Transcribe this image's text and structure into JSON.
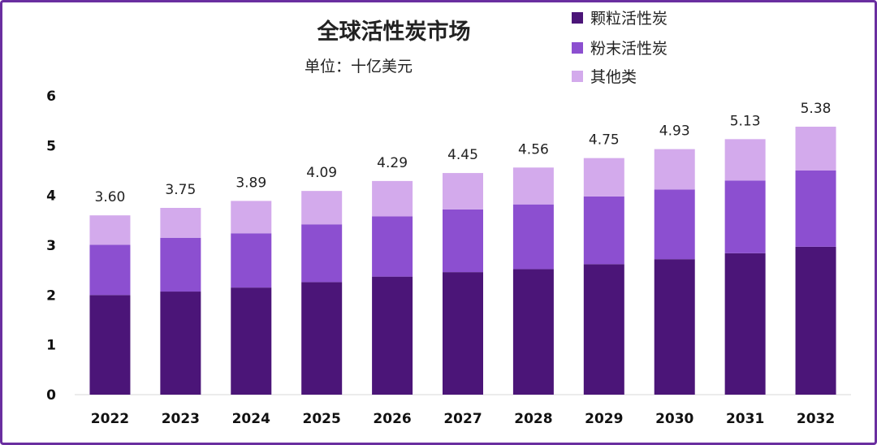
{
  "chart_data": {
    "type": "bar",
    "stacked": true,
    "title": "全球活性炭市场",
    "subtitle": "单位：十亿美元",
    "categories": [
      "2022",
      "2023",
      "2024",
      "2025",
      "2026",
      "2027",
      "2028",
      "2029",
      "2030",
      "2031",
      "2032"
    ],
    "series": [
      {
        "name": "颗粒活性炭",
        "color": "#4b1578",
        "values": [
          2.0,
          2.07,
          2.15,
          2.26,
          2.37,
          2.46,
          2.52,
          2.62,
          2.72,
          2.84,
          2.97
        ]
      },
      {
        "name": "粉末活性炭",
        "color": "#8c4fd0",
        "values": [
          1.01,
          1.08,
          1.09,
          1.16,
          1.21,
          1.26,
          1.3,
          1.36,
          1.4,
          1.46,
          1.53
        ]
      },
      {
        "name": "其他类",
        "color": "#d3aaec",
        "values": [
          0.59,
          0.6,
          0.65,
          0.67,
          0.71,
          0.73,
          0.74,
          0.77,
          0.81,
          0.83,
          0.88
        ]
      }
    ],
    "totals": [
      "3.60",
      "3.75",
      "3.89",
      "4.09",
      "4.29",
      "4.45",
      "4.56",
      "4.75",
      "4.93",
      "5.13",
      "5.38"
    ],
    "ylim": [
      0,
      6
    ],
    "yticks": [
      "0",
      "1",
      "2",
      "3",
      "4",
      "5",
      "6"
    ],
    "grid": false,
    "legend_position": "top-right"
  }
}
